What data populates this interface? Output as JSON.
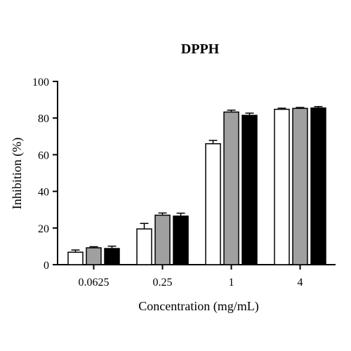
{
  "chart_data": {
    "type": "bar",
    "title": "DPPH",
    "xlabel": "Concentration (mg/mL)",
    "ylabel": "Inhibition (%)",
    "ylim": [
      0,
      100
    ],
    "yticks": [
      0,
      20,
      40,
      60,
      80,
      100
    ],
    "categories": [
      "0.0625",
      "0.25",
      "1",
      "4"
    ],
    "grid": false,
    "legend": "none",
    "series": [
      {
        "color": "#ffffff",
        "values": [
          6.8,
          19.5,
          66.0,
          84.8
        ],
        "errors": [
          1.2,
          3.0,
          1.8,
          0.6
        ]
      },
      {
        "color": "#a0a0a0",
        "values": [
          9.2,
          27.0,
          83.3,
          85.3
        ],
        "errors": [
          0.6,
          1.2,
          1.0,
          0.5
        ]
      },
      {
        "color": "#000000",
        "values": [
          8.8,
          26.5,
          81.5,
          85.5
        ],
        "errors": [
          1.3,
          1.6,
          1.2,
          0.8
        ]
      }
    ]
  }
}
